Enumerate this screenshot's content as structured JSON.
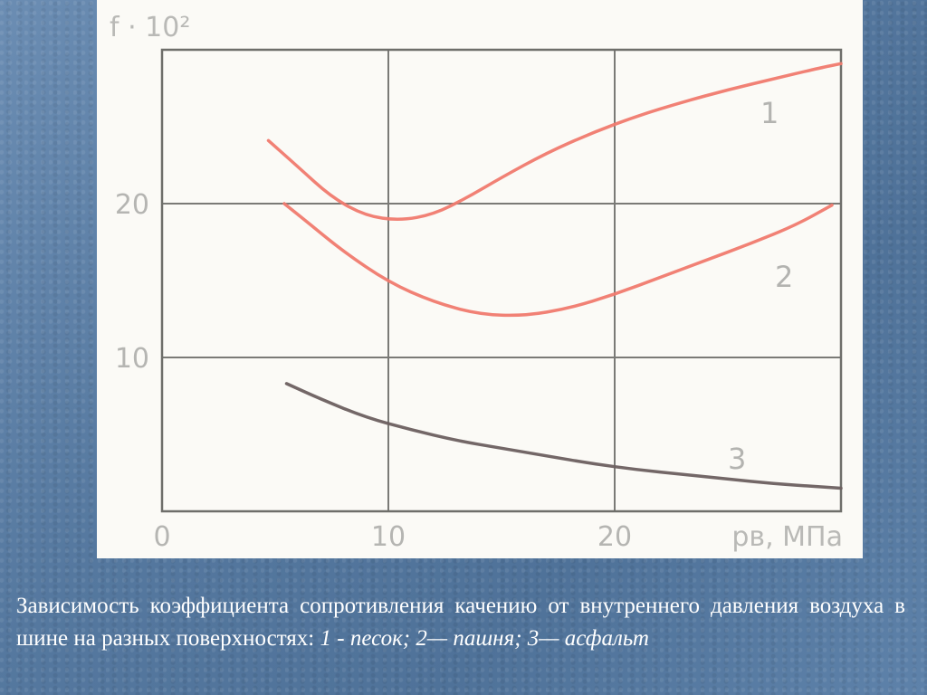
{
  "chart_data": {
    "type": "line",
    "ylabel": "f · 10²",
    "xlabel": "pв, МПа",
    "xlim": [
      0,
      30
    ],
    "ylim": [
      0,
      30
    ],
    "x_ticks": [
      "0",
      "10",
      "20"
    ],
    "y_ticks": [
      "10",
      "20"
    ],
    "grid": true,
    "series": [
      {
        "name": "1",
        "color": "#f07a6e",
        "points": [
          [
            4.7,
            24.1
          ],
          [
            6,
            22.4
          ],
          [
            7.5,
            20.4
          ],
          [
            9,
            19.2
          ],
          [
            10.5,
            18.9
          ],
          [
            12,
            19.3
          ],
          [
            13.5,
            20.4
          ],
          [
            15,
            21.7
          ],
          [
            17,
            23.3
          ],
          [
            19,
            24.6
          ],
          [
            21,
            25.7
          ],
          [
            23,
            26.6
          ],
          [
            25,
            27.4
          ],
          [
            27,
            28.1
          ],
          [
            29,
            28.8
          ],
          [
            30,
            29.1
          ]
        ]
      },
      {
        "name": "2",
        "color": "#f07a6e",
        "points": [
          [
            5.4,
            20.0
          ],
          [
            6.5,
            18.7
          ],
          [
            8,
            16.9
          ],
          [
            10,
            14.9
          ],
          [
            12,
            13.6
          ],
          [
            14,
            12.8
          ],
          [
            16,
            12.7
          ],
          [
            18,
            13.2
          ],
          [
            20,
            14.1
          ],
          [
            22,
            15.2
          ],
          [
            24,
            16.3
          ],
          [
            26,
            17.4
          ],
          [
            28,
            18.6
          ],
          [
            29.6,
            19.9
          ]
        ]
      },
      {
        "name": "3",
        "color": "#6b5f5f",
        "points": [
          [
            5.5,
            8.3
          ],
          [
            7,
            7.3
          ],
          [
            9,
            6.1
          ],
          [
            11,
            5.3
          ],
          [
            13,
            4.6
          ],
          [
            15,
            4.1
          ],
          [
            17,
            3.6
          ],
          [
            19,
            3.1
          ],
          [
            21,
            2.7
          ],
          [
            23,
            2.4
          ],
          [
            25,
            2.1
          ],
          [
            27,
            1.8
          ],
          [
            29,
            1.6
          ],
          [
            30,
            1.5
          ]
        ]
      }
    ]
  },
  "caption": {
    "plain": "Зависимость коэффициента сопротивления качению от внутреннего давления воздуха в шине на разных поверхностях: ",
    "italic": "1 - песок; 2— пашня; 3— асфальт"
  }
}
